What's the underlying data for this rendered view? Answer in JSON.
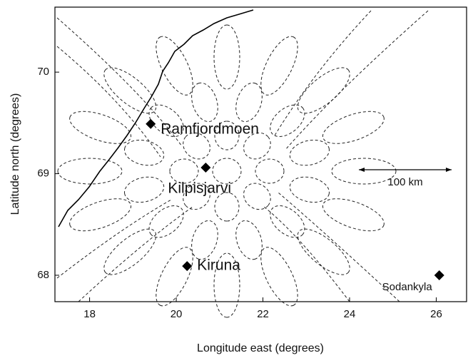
{
  "chart_data": {
    "type": "scatter",
    "x_label": "Longitude east (degrees)",
    "y_label": "Latitude north (degrees)",
    "xlim": [
      17.2,
      26.7
    ],
    "ylim": [
      67.74,
      70.64
    ],
    "xticks": [
      18,
      20,
      22,
      24,
      26
    ],
    "yticks": [
      68,
      69,
      70
    ],
    "annotation": "100 km",
    "color": "#000000",
    "points": {
      "labels": [
        "Ramfjordmoen",
        "Kilpisjarvi",
        "Kiruna",
        "Sodankyla"
      ],
      "x": [
        19.41,
        20.68,
        20.25,
        26.07
      ],
      "y": [
        69.49,
        69.06,
        68.09,
        68.0
      ]
    }
  }
}
